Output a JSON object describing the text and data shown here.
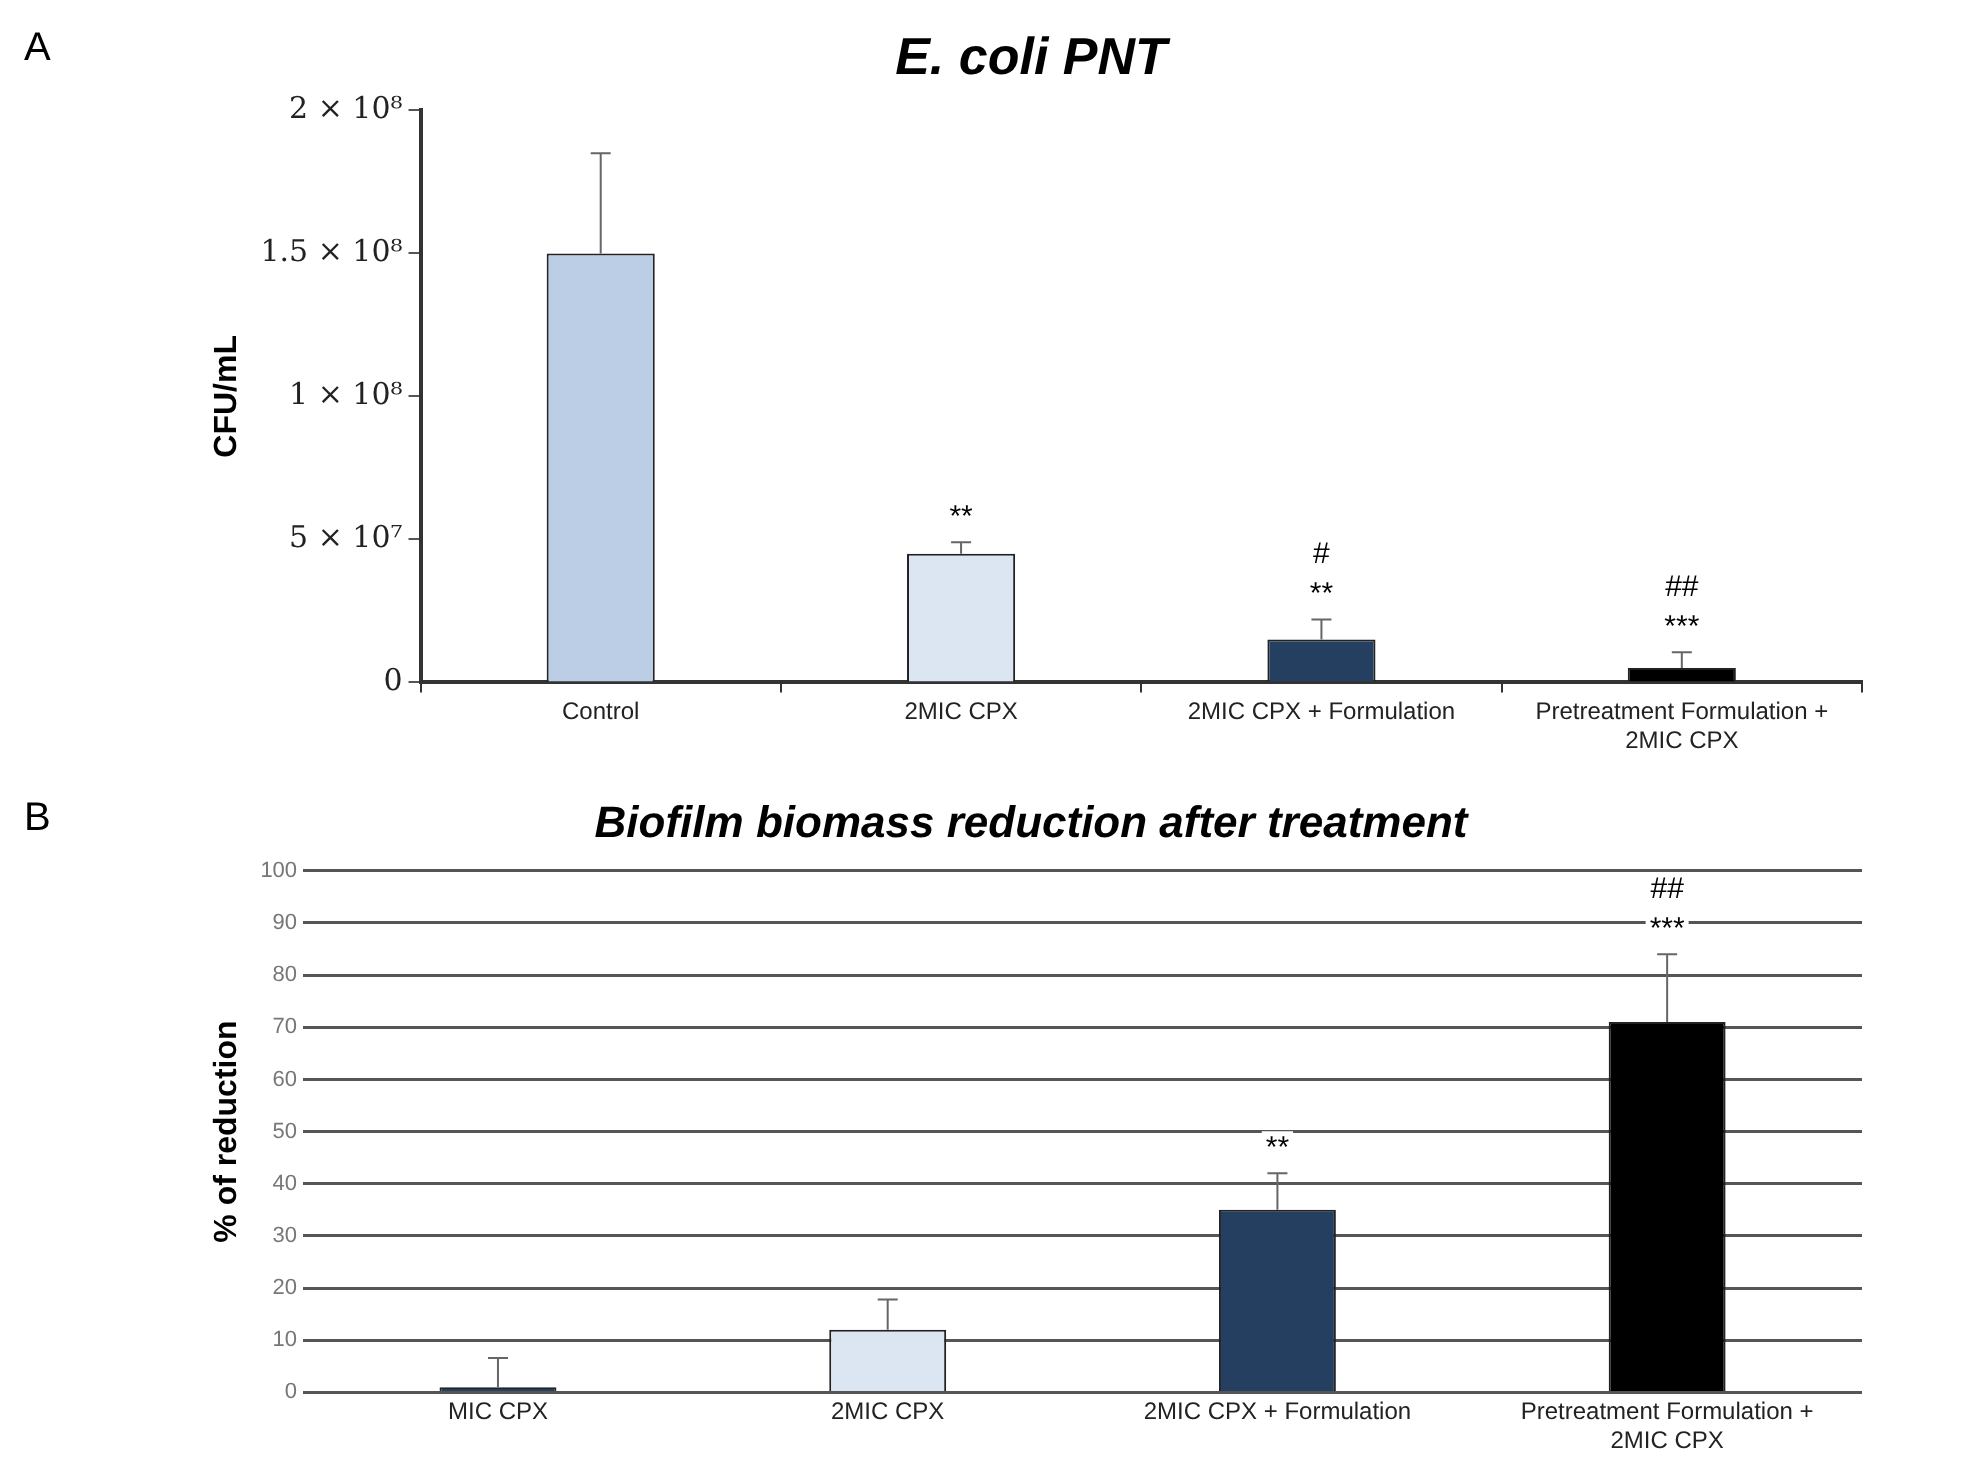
{
  "chart_data": [
    {
      "type": "bar",
      "title": "E. coli PNT",
      "ylabel": "CFU/mL",
      "categories": [
        "Control",
        "2MIC CPX",
        "2MIC CPX + Formulation",
        "Pretreatment Formulation + 2MIC CPX"
      ],
      "values": [
        150000000,
        45000000,
        15000000,
        5000000
      ],
      "colors": [
        "#bccde6",
        "#dce6f2",
        "#243f60",
        "#000000"
      ],
      "errors": [
        [
          150000000,
          185000000
        ],
        [
          45000000,
          49000000
        ],
        [
          15000000,
          22000000
        ],
        [
          5000000,
          10500000
        ]
      ],
      "ylim": [
        0,
        200000000
      ],
      "yticks": [
        0,
        {
          "value": 50000000,
          "label": "5 × 10⁷"
        },
        {
          "value": 100000000,
          "label": "1 × 10⁸"
        },
        {
          "value": 150000000,
          "label": "1.5 × 10⁸"
        },
        {
          "value": 200000000,
          "label": "2 × 10⁸"
        }
      ],
      "grid": false,
      "legend": false,
      "annotations": [
        "A",
        "**",
        "**",
        "#",
        "***",
        "##"
      ]
    },
    {
      "type": "bar",
      "title": "Biofilm biomass reduction after treatment",
      "ylabel": "% of reduction",
      "categories": [
        "MIC CPX",
        "2MIC CPX",
        "2MIC CPX + Formulation",
        "Pretreatment Formulation + 2MIC CPX"
      ],
      "values": [
        1,
        12,
        35,
        71
      ],
      "colors": [
        "#243f60",
        "#dce6f2",
        "#243f60",
        "#000000"
      ],
      "errors": [
        [
          1,
          6.6
        ],
        [
          12,
          17.8
        ],
        [
          35,
          42
        ],
        [
          71,
          84
        ]
      ],
      "ylim": [
        0,
        100
      ],
      "yticks": [
        0,
        10,
        20,
        30,
        40,
        50,
        60,
        70,
        80,
        90,
        100
      ],
      "grid": "y",
      "legend": false,
      "annotations": [
        "B",
        "**",
        "***",
        "##"
      ]
    }
  ]
}
